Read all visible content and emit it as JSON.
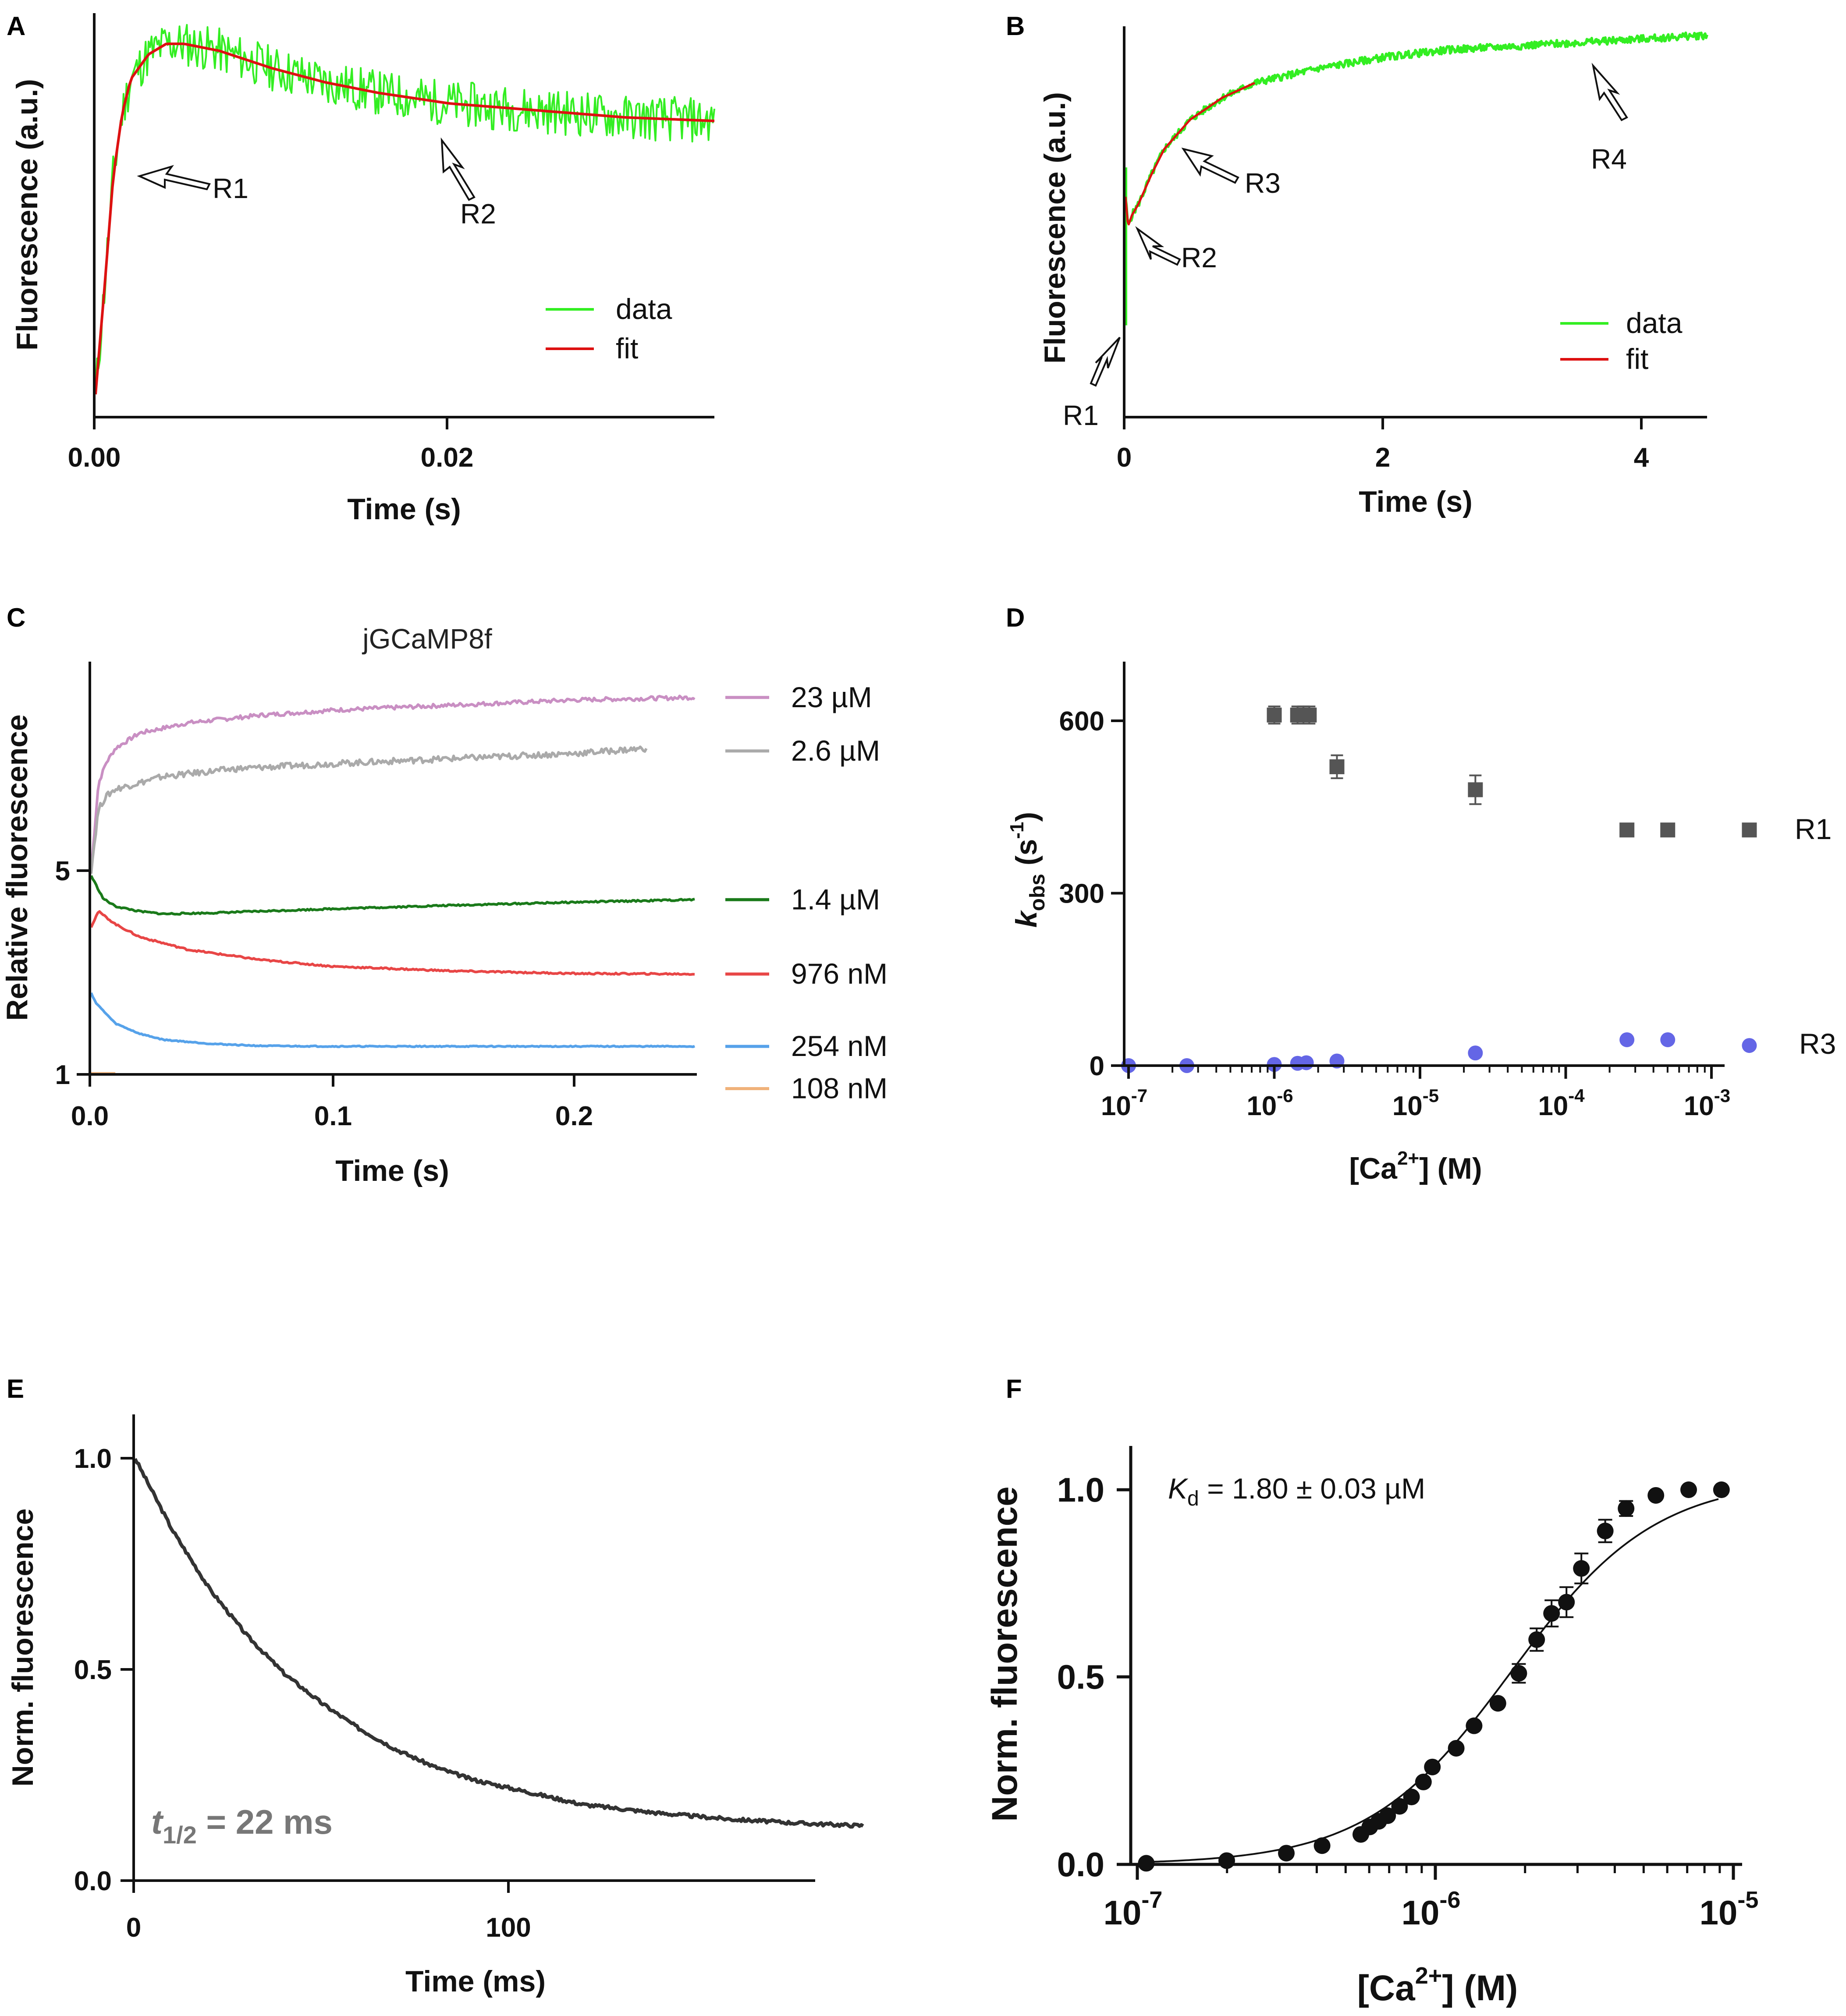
{
  "colors": {
    "green_data": "#33ee22",
    "red_fit": "#dd1111",
    "pink": "#c98fc3",
    "gray": "#aaaaaa",
    "dark_green": "#1a7a1a",
    "red": "#e84646",
    "blue": "#56a2ea",
    "orange": "#f0b27a",
    "square": "#555555",
    "circle": "#6466e6",
    "black": "#111111",
    "curve": "#333333",
    "t_half": "#777777"
  },
  "chart_data": [
    {
      "id": "A",
      "type": "line",
      "panel_label": "A",
      "xlabel": "Time (s)",
      "ylabel": "Fluorescence (a.u.)",
      "xlim": [
        0,
        0.035
      ],
      "ylim": [
        0,
        1.1
      ],
      "x_ticks": [
        0,
        0.02
      ],
      "x_tick_labels": [
        "0.00",
        "0.02"
      ],
      "series": [
        {
          "name": "data",
          "color": "#33ee22",
          "noise": 0.065,
          "x": [
            0,
            0.0005,
            0.001,
            0.0015,
            0.002,
            0.003,
            0.004,
            0.005,
            0.007,
            0.01,
            0.013,
            0.016,
            0.02,
            0.025,
            0.03,
            0.035
          ],
          "y": [
            0.0,
            0.3,
            0.62,
            0.8,
            0.9,
            0.97,
            1.0,
            1.0,
            0.98,
            0.93,
            0.89,
            0.86,
            0.83,
            0.81,
            0.79,
            0.78
          ]
        },
        {
          "name": "fit",
          "color": "#dd1111",
          "noise": 0,
          "x": [
            0,
            0.0005,
            0.001,
            0.0015,
            0.002,
            0.003,
            0.004,
            0.005,
            0.007,
            0.01,
            0.013,
            0.016,
            0.02,
            0.025,
            0.03,
            0.035
          ],
          "y": [
            0.0,
            0.3,
            0.62,
            0.8,
            0.9,
            0.97,
            1.0,
            1.0,
            0.98,
            0.93,
            0.89,
            0.86,
            0.83,
            0.81,
            0.79,
            0.78
          ]
        }
      ],
      "legend": [
        {
          "label": "data",
          "color": "#33ee22"
        },
        {
          "label": "fit",
          "color": "#dd1111"
        }
      ],
      "annotations": [
        {
          "text": "R1",
          "x": 0.0012,
          "y": 0.55
        },
        {
          "text": "R2",
          "x": 0.02,
          "y": 0.7
        }
      ]
    },
    {
      "id": "B",
      "type": "line",
      "panel_label": "B",
      "xlabel": "Time (s)",
      "ylabel": "Fluorescence (a.u.)",
      "xlim": [
        0,
        4.5
      ],
      "ylim": [
        0,
        1.1
      ],
      "x_ticks": [
        0,
        2,
        4
      ],
      "x_tick_labels": [
        "0",
        "2",
        "4"
      ],
      "series": [
        {
          "name": "data",
          "color": "#33ee22",
          "noise": 0.01,
          "x": [
            0,
            0.02,
            0.05,
            0.1,
            0.2,
            0.3,
            0.5,
            0.75,
            1.0,
            1.5,
            2.0,
            2.5,
            3.0,
            3.5,
            4.0,
            4.5
          ],
          "y": [
            0.6,
            0.52,
            0.55,
            0.58,
            0.66,
            0.73,
            0.81,
            0.87,
            0.91,
            0.95,
            0.98,
            1.0,
            1.01,
            1.02,
            1.03,
            1.04
          ]
        },
        {
          "name": "fit",
          "color": "#dd1111",
          "noise": 0,
          "x": [
            0,
            0.02,
            0.05,
            0.1,
            0.2,
            0.3,
            0.5,
            0.75,
            1.0
          ],
          "y": [
            0.6,
            0.52,
            0.55,
            0.58,
            0.66,
            0.73,
            0.81,
            0.87,
            0.91
          ]
        }
      ],
      "legend": [
        {
          "label": "data",
          "color": "#33ee22"
        },
        {
          "label": "fit",
          "color": "#dd1111"
        }
      ],
      "annotations": [
        {
          "text": "R1",
          "x": 0.0,
          "y": 0.25
        },
        {
          "text": "R2",
          "x": 0.05,
          "y": 0.52
        },
        {
          "text": "R3",
          "x": 0.45,
          "y": 0.79
        },
        {
          "text": "R4",
          "x": 3.65,
          "y": 1.03
        }
      ]
    },
    {
      "id": "C",
      "type": "line",
      "panel_label": "C",
      "title": "jGCaMP8f",
      "xlabel": "Time (s)",
      "ylabel": "Relative fluorescence",
      "xlim": [
        0,
        0.25
      ],
      "ylim": [
        1,
        9
      ],
      "x_ticks": [
        0,
        0.1,
        0.2
      ],
      "x_tick_labels": [
        "0.0",
        "0.1",
        "0.2"
      ],
      "y_ticks": [
        1,
        5
      ],
      "y_tick_labels": [
        "1",
        "5"
      ],
      "series": [
        {
          "name": "23 µM",
          "color": "#c98fc3",
          "noise": 0.04,
          "x": [
            0,
            0.003,
            0.006,
            0.01,
            0.02,
            0.04,
            0.07,
            0.1,
            0.15,
            0.2,
            0.25
          ],
          "y": [
            5.0,
            6.7,
            7.1,
            7.4,
            7.7,
            7.9,
            8.05,
            8.15,
            8.25,
            8.35,
            8.4
          ]
        },
        {
          "name": "2.6 µM",
          "color": "#aaaaaa",
          "noise": 0.06,
          "x": [
            0,
            0.003,
            0.006,
            0.01,
            0.03,
            0.06,
            0.1,
            0.15,
            0.2,
            0.23
          ],
          "y": [
            5.0,
            6.2,
            6.45,
            6.6,
            6.85,
            7.0,
            7.1,
            7.2,
            7.3,
            7.4
          ]
        },
        {
          "name": "1.4 µM",
          "color": "#1a7a1a",
          "noise": 0.015,
          "x": [
            0,
            0.005,
            0.01,
            0.02,
            0.03,
            0.05,
            0.1,
            0.15,
            0.2,
            0.25
          ],
          "y": [
            4.9,
            4.45,
            4.3,
            4.2,
            4.15,
            4.17,
            4.25,
            4.32,
            4.38,
            4.43
          ]
        },
        {
          "name": "976 nM",
          "color": "#e84646",
          "noise": 0.015,
          "x": [
            0,
            0.003,
            0.01,
            0.02,
            0.04,
            0.07,
            0.1,
            0.15,
            0.2,
            0.25
          ],
          "y": [
            3.9,
            4.2,
            3.95,
            3.7,
            3.45,
            3.25,
            3.12,
            3.03,
            2.98,
            2.97
          ]
        },
        {
          "name": "254 nM",
          "color": "#56a2ea",
          "noise": 0.01,
          "x": [
            0,
            0.002,
            0.01,
            0.02,
            0.03,
            0.05,
            0.07,
            0.1,
            0.15,
            0.2,
            0.25
          ],
          "y": [
            2.6,
            2.4,
            2.0,
            1.8,
            1.68,
            1.6,
            1.56,
            1.55,
            1.55,
            1.55,
            1.55
          ]
        },
        {
          "name": "108 nM",
          "color": "#f0b27a",
          "noise": 0,
          "x": [
            0,
            0.01
          ],
          "y": [
            1.02,
            1.02
          ]
        }
      ],
      "legend": [
        {
          "label": "23 µM",
          "color": "#c98fc3",
          "y": 8.4
        },
        {
          "label": "2.6 µM",
          "color": "#aaaaaa",
          "y": 7.35
        },
        {
          "label": "1.4 µM",
          "color": "#1a7a1a",
          "y": 4.43
        },
        {
          "label": "976 nM",
          "color": "#e84646",
          "y": 2.97
        },
        {
          "label": "254 nM",
          "color": "#56a2ea",
          "y": 1.55
        },
        {
          "label": "108 nM",
          "color": "#f0b27a",
          "y": 0.72
        }
      ]
    },
    {
      "id": "D",
      "type": "scatter",
      "panel_label": "D",
      "xlabel_parts": [
        "[Ca",
        "2+",
        "] (M)"
      ],
      "ylabel_parts": [
        "k",
        "obs",
        " (s",
        "-1",
        ")"
      ],
      "x_scale": "log",
      "xlim_log10": [
        -7,
        -2.9
      ],
      "ylim": [
        0,
        700
      ],
      "x_tick_exponents": [
        -7,
        -6,
        -5,
        -4,
        -3
      ],
      "y_ticks": [
        0,
        300,
        600
      ],
      "y_tick_labels": [
        "0",
        "300",
        "600"
      ],
      "series": [
        {
          "name": "R1",
          "marker": "square",
          "color": "#555555",
          "x_log10": [
            -6.0,
            -5.84,
            -5.8,
            -5.76,
            -5.57,
            -4.62,
            -3.58,
            -3.3,
            -2.74
          ],
          "y": [
            610,
            610,
            610,
            610,
            520,
            480,
            410,
            410,
            410
          ],
          "err": [
            15,
            15,
            15,
            15,
            20,
            25,
            0,
            0,
            0
          ]
        },
        {
          "name": "R3",
          "marker": "circle",
          "color": "#6466e6",
          "x_log10": [
            -7.0,
            -6.6,
            -6.0,
            -5.84,
            -5.78,
            -5.57,
            -4.62,
            -3.58,
            -3.3,
            -2.74
          ],
          "y": [
            0,
            0,
            2,
            4,
            5,
            8,
            22,
            45,
            45,
            35
          ],
          "err": [
            0,
            0,
            0,
            0,
            0,
            0,
            0,
            0,
            0,
            0
          ]
        }
      ],
      "series_labels": [
        {
          "text": "R1",
          "y": 410
        },
        {
          "text": "R3",
          "y": 35
        }
      ]
    },
    {
      "id": "E",
      "type": "line",
      "panel_label": "E",
      "xlabel": "Time (ms)",
      "ylabel": "Norm. fluorescence",
      "xlim": [
        0,
        195
      ],
      "ylim": [
        0,
        1.1
      ],
      "x_ticks": [
        0,
        100
      ],
      "x_tick_labels": [
        "0",
        "100"
      ],
      "y_ticks": [
        0,
        0.5,
        1
      ],
      "y_tick_labels": [
        "0.0",
        "0.5",
        "1.0"
      ],
      "series": [
        {
          "name": "decay",
          "color": "#333333",
          "noise": 0.004,
          "x": [
            0,
            10,
            20,
            30,
            40,
            50,
            60,
            70,
            80,
            90,
            100,
            120,
            140,
            160,
            180,
            195
          ],
          "y": [
            1.0,
            0.83,
            0.69,
            0.58,
            0.49,
            0.42,
            0.36,
            0.31,
            0.27,
            0.24,
            0.22,
            0.18,
            0.16,
            0.145,
            0.135,
            0.13
          ]
        }
      ],
      "annotation": {
        "t_label": "t",
        "t_sub": "1/2",
        "rest": " = 22 ms"
      }
    },
    {
      "id": "F",
      "type": "scatter",
      "panel_label": "F",
      "xlabel_parts": [
        "[Ca",
        "2+",
        "] (M)"
      ],
      "ylabel": "Norm. fluorescence",
      "x_scale": "log",
      "xlim_log10": [
        -7,
        -5
      ],
      "ylim": [
        0,
        1.1
      ],
      "x_tick_exponents": [
        -7,
        -6,
        -5
      ],
      "y_ticks": [
        0,
        0.5,
        1
      ],
      "y_tick_labels": [
        "0.0",
        "0.5",
        "1.0"
      ],
      "points": {
        "x_log10": [
          -6.97,
          -6.7,
          -6.5,
          -6.38,
          -6.25,
          -6.22,
          -6.19,
          -6.16,
          -6.12,
          -6.08,
          -6.04,
          -6.01,
          -5.93,
          -5.87,
          -5.79,
          -5.72,
          -5.66,
          -5.61,
          -5.56,
          -5.51,
          -5.43,
          -5.36,
          -5.26,
          -5.15,
          -5.04
        ],
        "y": [
          0.003,
          0.01,
          0.03,
          0.05,
          0.08,
          0.1,
          0.115,
          0.13,
          0.155,
          0.18,
          0.22,
          0.26,
          0.31,
          0.37,
          0.43,
          0.51,
          0.6,
          0.67,
          0.7,
          0.79,
          0.89,
          0.95,
          0.985,
          1.0,
          1.0
        ],
        "err": [
          0,
          0,
          0,
          0,
          0,
          0,
          0,
          0,
          0,
          0,
          0,
          0,
          0,
          0,
          0,
          0.025,
          0.03,
          0.035,
          0.04,
          0.04,
          0.03,
          0.02,
          0,
          0,
          0
        ]
      },
      "fit": {
        "kd_uM": 1.8,
        "hill": 1.8
      },
      "annotation": {
        "k": "K",
        "k_sub": "d",
        "rest": " = 1.80 ± 0.03  µM"
      }
    }
  ]
}
